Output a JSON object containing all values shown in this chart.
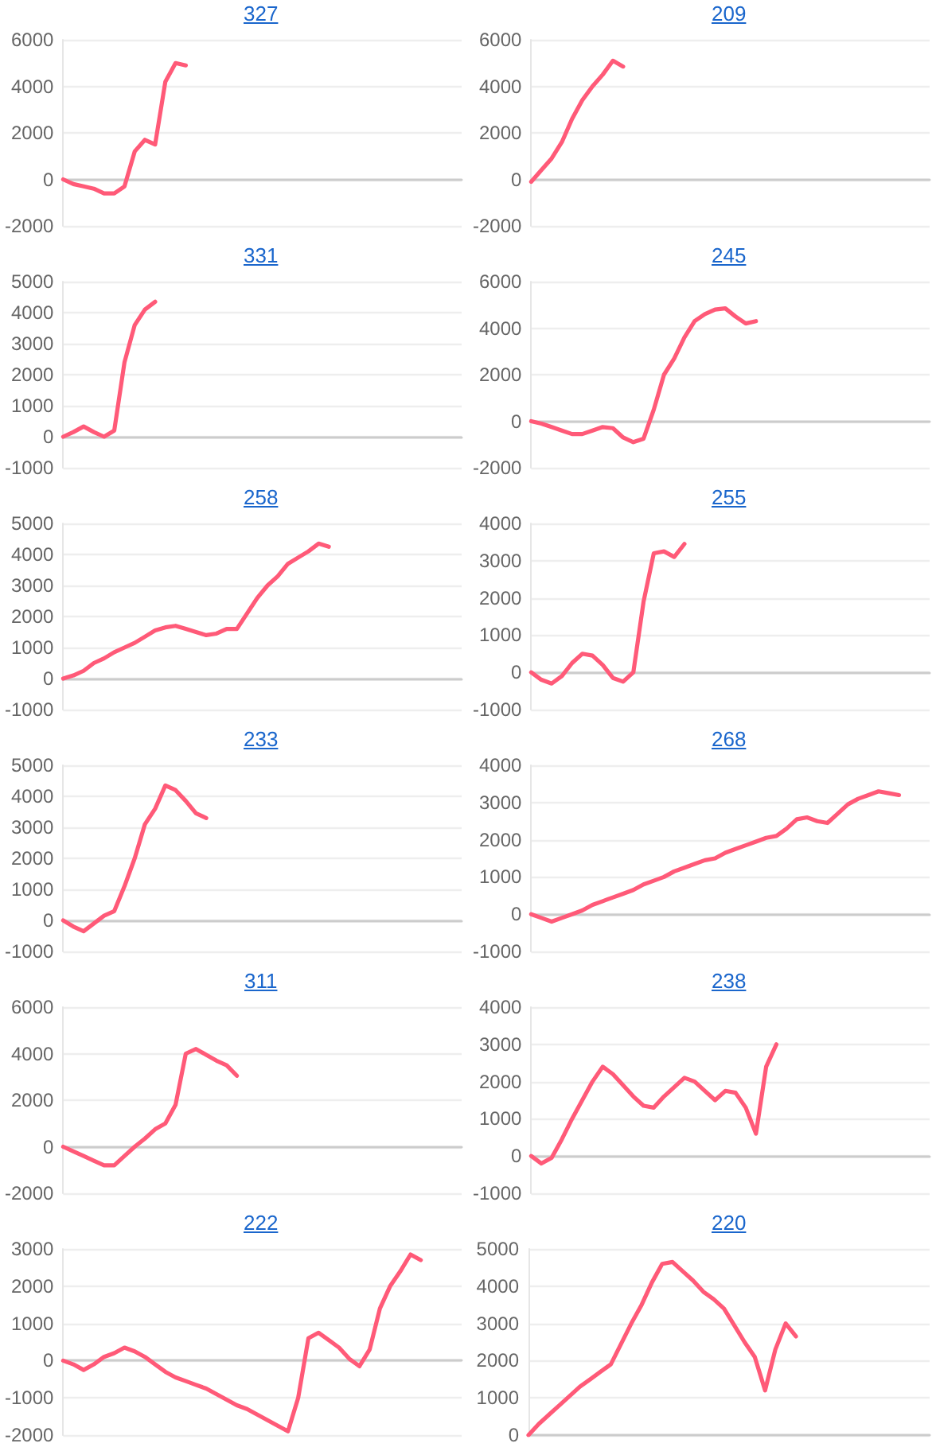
{
  "chart_data": [
    {
      "type": "line",
      "title": "327",
      "color": "#ff5a78",
      "grid": "y",
      "tick_labels": "y",
      "ylim": [
        -2000,
        6000
      ],
      "yticks": [
        -2000,
        0,
        2000,
        4000,
        6000
      ],
      "categories": [
        null,
        null,
        null,
        null,
        null,
        null,
        null,
        null,
        null,
        null,
        null,
        null,
        null,
        null,
        null,
        null,
        null,
        null,
        null,
        null,
        null,
        null,
        null,
        null,
        null,
        null,
        null,
        null,
        null,
        null,
        null,
        null,
        null,
        null,
        null,
        null,
        null,
        null,
        null,
        null
      ],
      "values": [
        0,
        -200,
        -300,
        -400,
        -600,
        -600,
        -300,
        1200,
        1700,
        1500,
        4200,
        5000,
        4900,
        null,
        null,
        null,
        null,
        null,
        null,
        null,
        null,
        null,
        null,
        null,
        null,
        null,
        null,
        null,
        null,
        null,
        null,
        null,
        null,
        null,
        null,
        null,
        null,
        null,
        null,
        null
      ]
    },
    {
      "type": "line",
      "title": "209",
      "color": "#ff5a78",
      "grid": "y",
      "tick_labels": "y",
      "ylim": [
        -2000,
        6000
      ],
      "yticks": [
        -2000,
        0,
        2000,
        4000,
        6000
      ],
      "categories": [
        null,
        null,
        null,
        null,
        null,
        null,
        null,
        null,
        null,
        null,
        null,
        null,
        null,
        null,
        null,
        null,
        null,
        null,
        null,
        null,
        null,
        null,
        null,
        null,
        null,
        null,
        null,
        null,
        null,
        null,
        null,
        null,
        null,
        null,
        null,
        null,
        null,
        null,
        null,
        null
      ],
      "values": [
        -100,
        400,
        900,
        1600,
        2600,
        3400,
        4000,
        4500,
        5100,
        4850,
        null,
        null,
        null,
        null,
        null,
        null,
        null,
        null,
        null,
        null,
        null,
        null,
        null,
        null,
        null,
        null,
        null,
        null,
        null,
        null,
        null,
        null,
        null,
        null,
        null,
        null,
        null,
        null,
        null,
        null
      ]
    },
    {
      "type": "line",
      "title": "331",
      "color": "#ff5a78",
      "grid": "y",
      "tick_labels": "y",
      "ylim": [
        -1000,
        5000
      ],
      "yticks": [
        -1000,
        0,
        1000,
        2000,
        3000,
        4000,
        5000
      ],
      "categories": [
        null,
        null,
        null,
        null,
        null,
        null,
        null,
        null,
        null,
        null,
        null,
        null,
        null,
        null,
        null,
        null,
        null,
        null,
        null,
        null,
        null,
        null,
        null,
        null,
        null,
        null,
        null,
        null,
        null,
        null,
        null,
        null,
        null,
        null,
        null,
        null,
        null,
        null,
        null,
        null
      ],
      "values": [
        0,
        150,
        330,
        150,
        0,
        200,
        2400,
        3600,
        4100,
        4350,
        null,
        null,
        null,
        null,
        null,
        null,
        null,
        null,
        null,
        null,
        null,
        null,
        null,
        null,
        null,
        null,
        null,
        null,
        null,
        null,
        null,
        null,
        null,
        null,
        null,
        null,
        null,
        null,
        null,
        null
      ]
    },
    {
      "type": "line",
      "title": "245",
      "color": "#ff5a78",
      "grid": "y",
      "tick_labels": "y",
      "ylim": [
        -2000,
        6000
      ],
      "yticks": [
        -2000,
        0,
        2000,
        4000,
        6000
      ],
      "categories": [
        null,
        null,
        null,
        null,
        null,
        null,
        null,
        null,
        null,
        null,
        null,
        null,
        null,
        null,
        null,
        null,
        null,
        null,
        null,
        null,
        null,
        null,
        null,
        null,
        null,
        null,
        null,
        null,
        null,
        null,
        null,
        null,
        null,
        null,
        null,
        null,
        null,
        null,
        null,
        null
      ],
      "values": [
        0,
        -100,
        -250,
        -400,
        -550,
        -550,
        -400,
        -250,
        -300,
        -700,
        -900,
        -750,
        500,
        2000,
        2700,
        3600,
        4300,
        4600,
        4800,
        4850,
        4500,
        4200,
        4300,
        null,
        null,
        null,
        null,
        null,
        null,
        null,
        null,
        null,
        null,
        null,
        null,
        null,
        null,
        null,
        null,
        null
      ]
    },
    {
      "type": "line",
      "title": "258",
      "color": "#ff5a78",
      "grid": "y",
      "tick_labels": "y",
      "ylim": [
        -1000,
        5000
      ],
      "yticks": [
        -1000,
        0,
        1000,
        2000,
        3000,
        4000,
        5000
      ],
      "categories": [
        null,
        null,
        null,
        null,
        null,
        null,
        null,
        null,
        null,
        null,
        null,
        null,
        null,
        null,
        null,
        null,
        null,
        null,
        null,
        null,
        null,
        null,
        null,
        null,
        null,
        null,
        null,
        null,
        null,
        null,
        null,
        null,
        null,
        null,
        null,
        null,
        null,
        null,
        null,
        null
      ],
      "values": [
        0,
        100,
        250,
        500,
        650,
        850,
        1000,
        1150,
        1350,
        1550,
        1650,
        1700,
        1600,
        1500,
        1400,
        1450,
        1600,
        1600,
        2100,
        2600,
        3000,
        3300,
        3700,
        3900,
        4100,
        4350,
        4250,
        null,
        null,
        null,
        null,
        null,
        null,
        null,
        null,
        null,
        null,
        null,
        null,
        null
      ]
    },
    {
      "type": "line",
      "title": "255",
      "color": "#ff5a78",
      "grid": "y",
      "tick_labels": "y",
      "ylim": [
        -1000,
        4000
      ],
      "yticks": [
        -1000,
        0,
        1000,
        2000,
        3000,
        4000
      ],
      "categories": [
        null,
        null,
        null,
        null,
        null,
        null,
        null,
        null,
        null,
        null,
        null,
        null,
        null,
        null,
        null,
        null,
        null,
        null,
        null,
        null,
        null,
        null,
        null,
        null,
        null,
        null,
        null,
        null,
        null,
        null,
        null,
        null,
        null,
        null,
        null,
        null,
        null,
        null,
        null,
        null
      ],
      "values": [
        0,
        -200,
        -300,
        -100,
        250,
        500,
        450,
        200,
        -150,
        -250,
        0,
        1900,
        3200,
        3250,
        3100,
        3450,
        null,
        null,
        null,
        null,
        null,
        null,
        null,
        null,
        null,
        null,
        null,
        null,
        null,
        null,
        null,
        null,
        null,
        null,
        null,
        null,
        null,
        null,
        null,
        null
      ]
    },
    {
      "type": "line",
      "title": "233",
      "color": "#ff5a78",
      "grid": "y",
      "tick_labels": "y",
      "ylim": [
        -1000,
        5000
      ],
      "yticks": [
        -1000,
        0,
        1000,
        2000,
        3000,
        4000,
        5000
      ],
      "categories": [
        null,
        null,
        null,
        null,
        null,
        null,
        null,
        null,
        null,
        null,
        null,
        null,
        null,
        null,
        null,
        null,
        null,
        null,
        null,
        null,
        null,
        null,
        null,
        null,
        null,
        null,
        null,
        null,
        null,
        null,
        null,
        null,
        null,
        null,
        null,
        null,
        null,
        null,
        null,
        null
      ],
      "values": [
        0,
        -200,
        -350,
        -100,
        150,
        300,
        1100,
        2000,
        3100,
        3600,
        4350,
        4200,
        3850,
        3450,
        3300,
        null,
        null,
        null,
        null,
        null,
        null,
        null,
        null,
        null,
        null,
        null,
        null,
        null,
        null,
        null,
        null,
        null,
        null,
        null,
        null,
        null,
        null,
        null,
        null,
        null
      ]
    },
    {
      "type": "line",
      "title": "268",
      "color": "#ff5a78",
      "grid": "y",
      "tick_labels": "y",
      "ylim": [
        -1000,
        4000
      ],
      "yticks": [
        -1000,
        0,
        1000,
        2000,
        3000,
        4000
      ],
      "categories": [
        null,
        null,
        null,
        null,
        null,
        null,
        null,
        null,
        null,
        null,
        null,
        null,
        null,
        null,
        null,
        null,
        null,
        null,
        null,
        null,
        null,
        null,
        null,
        null,
        null,
        null,
        null,
        null,
        null,
        null,
        null,
        null,
        null,
        null,
        null,
        null,
        null,
        null,
        null,
        null
      ],
      "values": [
        0,
        -100,
        -200,
        -100,
        0,
        100,
        250,
        350,
        450,
        550,
        650,
        800,
        900,
        1000,
        1150,
        1250,
        1350,
        1450,
        1500,
        1650,
        1750,
        1850,
        1950,
        2050,
        2100,
        2300,
        2550,
        2600,
        2500,
        2450,
        2700,
        2950,
        3100,
        3200,
        3300,
        3250,
        3200,
        null,
        null,
        null
      ]
    },
    {
      "type": "line",
      "title": "311",
      "color": "#ff5a78",
      "grid": "y",
      "tick_labels": "y",
      "ylim": [
        -2000,
        6000
      ],
      "yticks": [
        -2000,
        0,
        2000,
        4000,
        6000
      ],
      "categories": [
        null,
        null,
        null,
        null,
        null,
        null,
        null,
        null,
        null,
        null,
        null,
        null,
        null,
        null,
        null,
        null,
        null,
        null,
        null,
        null,
        null,
        null,
        null,
        null,
        null,
        null,
        null,
        null,
        null,
        null,
        null,
        null,
        null,
        null,
        null,
        null,
        null,
        null,
        null,
        null
      ],
      "values": [
        0,
        -200,
        -400,
        -600,
        -800,
        -800,
        -400,
        0,
        350,
        750,
        1000,
        1800,
        4000,
        4200,
        3950,
        3700,
        3500,
        3050,
        null,
        null,
        null,
        null,
        null,
        null,
        null,
        null,
        null,
        null,
        null,
        null,
        null,
        null,
        null,
        null,
        null,
        null,
        null,
        null,
        null,
        null
      ]
    },
    {
      "type": "line",
      "title": "238",
      "color": "#ff5a78",
      "grid": "y",
      "tick_labels": "y",
      "ylim": [
        -1000,
        4000
      ],
      "yticks": [
        -1000,
        0,
        1000,
        2000,
        3000,
        4000
      ],
      "categories": [
        null,
        null,
        null,
        null,
        null,
        null,
        null,
        null,
        null,
        null,
        null,
        null,
        null,
        null,
        null,
        null,
        null,
        null,
        null,
        null,
        null,
        null,
        null,
        null,
        null,
        null,
        null,
        null,
        null,
        null,
        null,
        null,
        null,
        null,
        null,
        null,
        null,
        null,
        null,
        null
      ],
      "values": [
        0,
        -200,
        -50,
        450,
        1000,
        1500,
        2000,
        2400,
        2200,
        1900,
        1600,
        1350,
        1300,
        1600,
        1850,
        2100,
        2000,
        1750,
        1500,
        1750,
        1700,
        1300,
        600,
        2400,
        3000,
        null,
        null,
        null,
        null,
        null,
        null,
        null,
        null,
        null,
        null,
        null,
        null,
        null,
        null,
        null
      ]
    },
    {
      "type": "line",
      "title": "222",
      "color": "#ff5a78",
      "grid": "y",
      "tick_labels": "y",
      "ylim": [
        -2000,
        3000
      ],
      "yticks": [
        -2000,
        -1000,
        0,
        1000,
        2000,
        3000
      ],
      "categories": [
        null,
        null,
        null,
        null,
        null,
        null,
        null,
        null,
        null,
        null,
        null,
        null,
        null,
        null,
        null,
        null,
        null,
        null,
        null,
        null,
        null,
        null,
        null,
        null,
        null,
        null,
        null,
        null,
        null,
        null,
        null,
        null,
        null,
        null,
        null,
        null,
        null,
        null,
        null,
        null
      ],
      "values": [
        0,
        -100,
        -250,
        -100,
        100,
        200,
        350,
        250,
        100,
        -100,
        -300,
        -450,
        -550,
        -650,
        -750,
        -900,
        -1050,
        -1200,
        -1300,
        -1450,
        -1600,
        -1750,
        -1900,
        -1000,
        600,
        750,
        550,
        350,
        50,
        -150,
        300,
        1400,
        2000,
        2400,
        2850,
        2700,
        null,
        null,
        null,
        null
      ]
    },
    {
      "type": "line",
      "title": "220",
      "color": "#ff5a78",
      "grid": "y",
      "tick_labels": "y",
      "ylim": [
        0,
        5000
      ],
      "yticks": [
        0,
        1000,
        2000,
        3000,
        4000,
        5000
      ],
      "categories": [
        null,
        null,
        null,
        null,
        null,
        null,
        null,
        null,
        null,
        null,
        null,
        null,
        null,
        null,
        null,
        null,
        null,
        null,
        null,
        null,
        null,
        null,
        null,
        null,
        null,
        null,
        null,
        null,
        null,
        null,
        null,
        null,
        null,
        null,
        null,
        null,
        null,
        null,
        null,
        null
      ],
      "values": [
        0,
        300,
        550,
        800,
        1050,
        1300,
        1500,
        1700,
        1900,
        2450,
        3000,
        3500,
        4100,
        4600,
        4650,
        4400,
        4150,
        3850,
        3650,
        3400,
        2950,
        2500,
        2100,
        1200,
        2300,
        3000,
        2650,
        null,
        null,
        null,
        null,
        null,
        null,
        null,
        null,
        null,
        null,
        null,
        null,
        null
      ]
    }
  ]
}
